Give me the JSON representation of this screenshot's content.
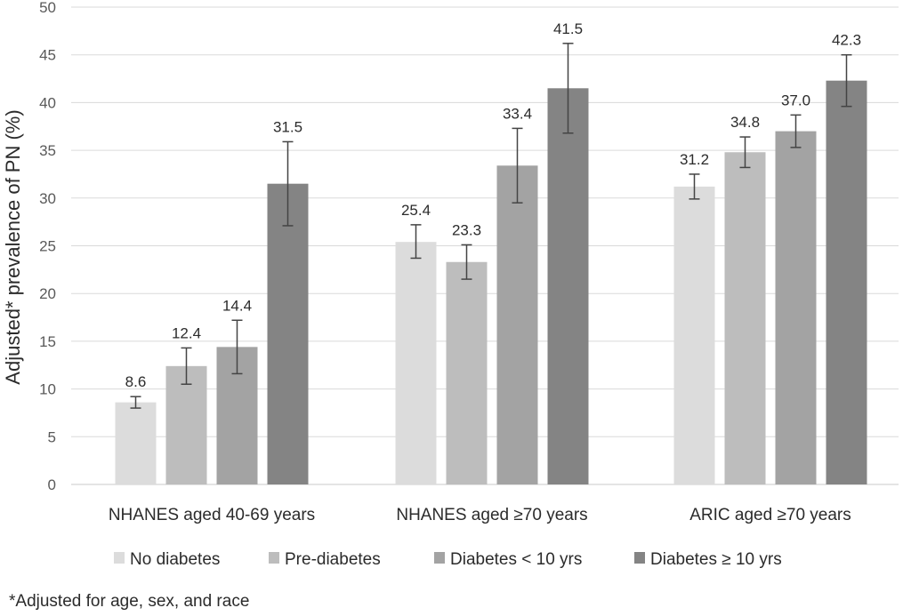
{
  "chart_data": {
    "type": "bar",
    "title": "",
    "xlabel": "",
    "ylabel": "Adjusted* prevalence of PN (%)",
    "ylim": [
      0,
      50
    ],
    "ytick_step": 5,
    "grid": true,
    "legend_position": "bottom",
    "categories": [
      "NHANES aged 40-69 years",
      "NHANES aged ≥70 years",
      "ARIC aged ≥70 years"
    ],
    "series": [
      {
        "name": "No diabetes",
        "color": "#dcdcdc",
        "values": [
          8.6,
          25.4,
          31.2
        ],
        "labels": [
          "8.6",
          "25.4",
          "31.2"
        ],
        "ci_low": [
          8.0,
          23.7,
          29.9
        ],
        "ci_high": [
          9.2,
          27.2,
          32.5
        ]
      },
      {
        "name": "Pre-diabetes",
        "color": "#bdbdbd",
        "values": [
          12.4,
          23.3,
          34.8
        ],
        "labels": [
          "12.4",
          "23.3",
          "34.8"
        ],
        "ci_low": [
          10.5,
          21.5,
          33.2
        ],
        "ci_high": [
          14.3,
          25.1,
          36.4
        ]
      },
      {
        "name": "Diabetes < 10 yrs",
        "color": "#a3a3a3",
        "values": [
          14.4,
          33.4,
          37.0
        ],
        "labels": [
          "14.4",
          "33.4",
          "37.0"
        ],
        "ci_low": [
          11.6,
          29.5,
          35.3
        ],
        "ci_high": [
          17.2,
          37.3,
          38.7
        ]
      },
      {
        "name": "Diabetes ≥ 10 yrs",
        "color": "#848484",
        "values": [
          31.5,
          41.5,
          42.3
        ],
        "labels": [
          "31.5",
          "41.5",
          "42.3"
        ],
        "ci_low": [
          27.1,
          36.8,
          39.6
        ],
        "ci_high": [
          35.9,
          46.2,
          45.0
        ]
      }
    ]
  },
  "footnote": "*Adjusted for age, sex, and race"
}
